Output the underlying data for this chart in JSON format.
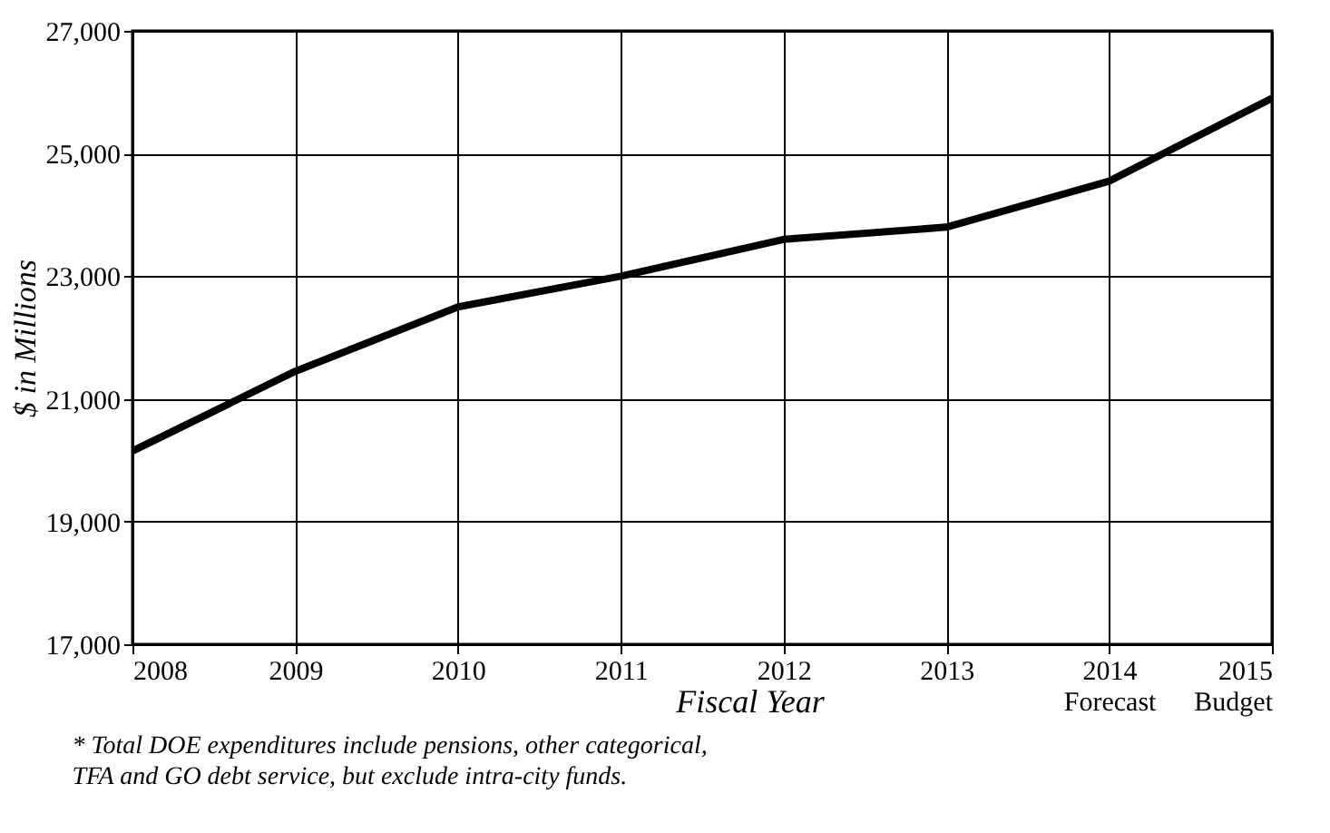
{
  "chart_data": {
    "type": "line",
    "xlabel": "Fiscal Year",
    "ylabel": "$ in Millions",
    "x": [
      2008,
      2009,
      2010,
      2011,
      2012,
      2013,
      2014,
      2015
    ],
    "series": [
      {
        "color": "#000000",
        "values": [
          20150,
          21450,
          22500,
          23000,
          23600,
          23800,
          24550,
          25900
        ]
      }
    ],
    "xlim": [
      2008,
      2015
    ],
    "xticks": [
      2008,
      2009,
      2010,
      2011,
      2012,
      2013,
      {
        "value": 2014,
        "label": "2014\nForecast"
      },
      {
        "value": 2015,
        "label": "2015\nBudget"
      }
    ],
    "ylim": [
      17000,
      27000
    ],
    "yticks": [
      {
        "value": 17000,
        "label": "17,000"
      },
      {
        "value": 19000,
        "label": "19,000"
      },
      {
        "value": 21000,
        "label": "21,000"
      },
      {
        "value": 23000,
        "label": "23,000"
      },
      {
        "value": 25000,
        "label": "25,000"
      },
      {
        "value": 27000,
        "label": "27,000"
      }
    ],
    "grid": true,
    "marker": "none",
    "line_style": "solid",
    "annotations": [
      "* Total DOE expenditures include pensions, other categorical,",
      "TFA and GO debt service, but exclude intra-city funds."
    ]
  }
}
